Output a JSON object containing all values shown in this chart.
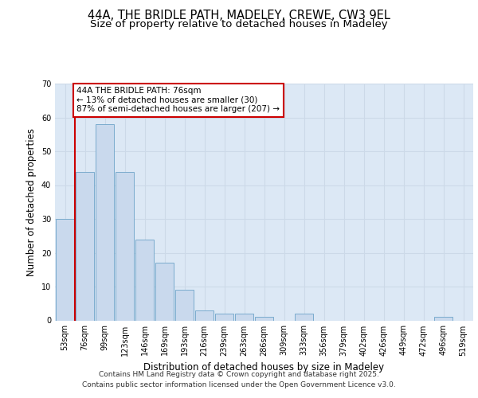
{
  "title1": "44A, THE BRIDLE PATH, MADELEY, CREWE, CW3 9EL",
  "title2": "Size of property relative to detached houses in Madeley",
  "xlabel": "Distribution of detached houses by size in Madeley",
  "ylabel": "Number of detached properties",
  "categories": [
    "53sqm",
    "76sqm",
    "99sqm",
    "123sqm",
    "146sqm",
    "169sqm",
    "193sqm",
    "216sqm",
    "239sqm",
    "263sqm",
    "286sqm",
    "309sqm",
    "333sqm",
    "356sqm",
    "379sqm",
    "402sqm",
    "426sqm",
    "449sqm",
    "472sqm",
    "496sqm",
    "519sqm"
  ],
  "values": [
    30,
    44,
    58,
    44,
    24,
    17,
    9,
    3,
    2,
    2,
    1,
    0,
    2,
    0,
    0,
    0,
    0,
    0,
    0,
    1,
    0
  ],
  "bar_color": "#c9d9ed",
  "bar_edge_color": "#7aabcd",
  "grid_color": "#ccd9e8",
  "background_color": "#dce8f5",
  "figure_background": "#ffffff",
  "vline_x": 0.5,
  "vline_color": "#cc0000",
  "annotation_text": "44A THE BRIDLE PATH: 76sqm\n← 13% of detached houses are smaller (30)\n87% of semi-detached houses are larger (207) →",
  "annotation_box_edge_color": "#cc0000",
  "ylim": [
    0,
    70
  ],
  "yticks": [
    0,
    10,
    20,
    30,
    40,
    50,
    60,
    70
  ],
  "footer1": "Contains HM Land Registry data © Crown copyright and database right 2025.",
  "footer2": "Contains public sector information licensed under the Open Government Licence v3.0.",
  "title_fontsize": 10.5,
  "subtitle_fontsize": 9.5,
  "tick_fontsize": 7,
  "ylabel_fontsize": 8.5,
  "xlabel_fontsize": 8.5,
  "footer_fontsize": 6.5,
  "annotation_fontsize": 7.5
}
